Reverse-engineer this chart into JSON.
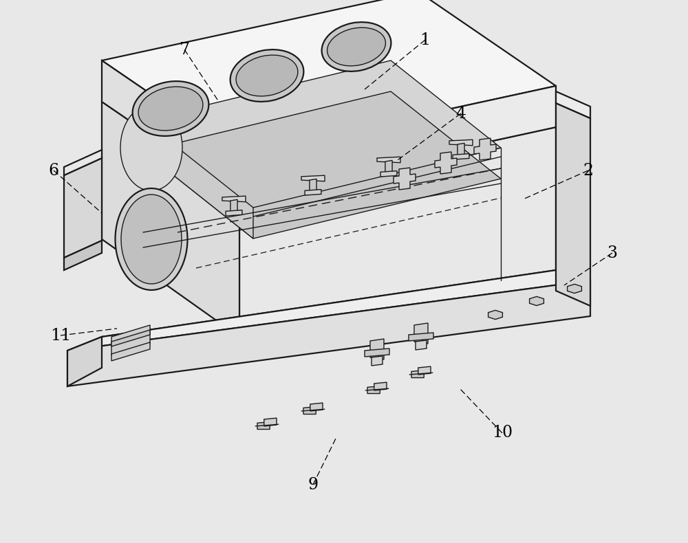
{
  "background_color": "#e8e8e8",
  "line_color": "#1a1a1a",
  "face_top": "#f2f2f2",
  "face_front": "#e0e0e0",
  "face_left": "#d0d0d0",
  "face_dark": "#c0c0c0",
  "face_white": "#ffffff",
  "labels_info": {
    "1": [
      618,
      58,
      530,
      130
    ],
    "2": [
      855,
      248,
      760,
      290
    ],
    "3": [
      890,
      368,
      820,
      415
    ],
    "4": [
      670,
      165,
      575,
      235
    ],
    "6": [
      78,
      248,
      148,
      310
    ],
    "7": [
      268,
      72,
      318,
      148
    ],
    "9": [
      455,
      705,
      488,
      638
    ],
    "10": [
      730,
      630,
      668,
      565
    ],
    "11": [
      88,
      488,
      170,
      478
    ]
  }
}
